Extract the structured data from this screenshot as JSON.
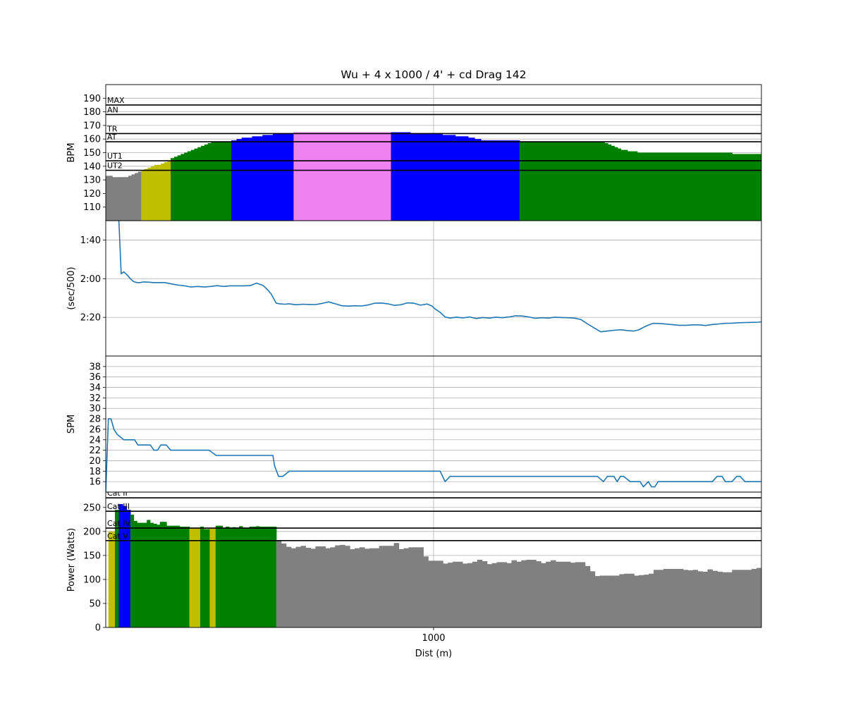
{
  "title": "Wu + 4 x 1000 / 4' + cd Drag 142",
  "xlabel": "Dist (m)",
  "colors": {
    "grey": "#808080",
    "yellow": "#bfbf00",
    "green": "#008000",
    "blue": "#0000ff",
    "violet": "#ee82ee",
    "line": "#1f77b4",
    "axis": "#000000",
    "grid": "#b0b0b0"
  },
  "chart_data": [
    {
      "type": "bar",
      "id": "hr",
      "ylabel": "BPM",
      "ylim": [
        100,
        200
      ],
      "yticks": [
        110,
        120,
        130,
        140,
        150,
        160,
        170,
        180,
        190
      ],
      "grid": true,
      "zone_lines": [
        {
          "label": "MAX",
          "value": 185
        },
        {
          "label": "AN",
          "value": 178
        },
        {
          "label": "TR",
          "value": 164
        },
        {
          "label": "AT",
          "value": 158
        },
        {
          "label": "UT1",
          "value": 144
        },
        {
          "label": "UT2",
          "value": 137
        }
      ],
      "segments": [
        {
          "x0": 0,
          "x1": 108,
          "color": "grey",
          "values": [
            133,
            133,
            132,
            132,
            132,
            132,
            132,
            133,
            134,
            135,
            136
          ]
        },
        {
          "x0": 108,
          "x1": 198,
          "color": "yellow",
          "values": [
            137,
            138,
            139,
            140,
            141,
            141,
            142,
            143,
            144
          ]
        },
        {
          "x0": 198,
          "x1": 383,
          "color": "green",
          "values": [
            146,
            147,
            148,
            149,
            150,
            151,
            152,
            153,
            154,
            155,
            156,
            157,
            158,
            158,
            158,
            158,
            158,
            158
          ]
        },
        {
          "x0": 383,
          "x1": 573,
          "color": "blue",
          "values": [
            159,
            160,
            161,
            161,
            162,
            162,
            163,
            163,
            164,
            164,
            164,
            164
          ]
        },
        {
          "x0": 573,
          "x1": 870,
          "color": "violet",
          "values": [
            165,
            165,
            165,
            165,
            165,
            165,
            165,
            165,
            165,
            165,
            165,
            165,
            165
          ]
        },
        {
          "x0": 870,
          "x1": 1262,
          "color": "blue",
          "values": [
            165,
            165,
            165,
            164,
            164,
            164,
            164,
            164,
            163,
            163,
            162,
            162,
            161,
            160,
            159,
            159,
            159,
            159,
            159,
            159
          ]
        },
        {
          "x0": 1262,
          "x1": 2000,
          "color": "green",
          "values": [
            158,
            158,
            158,
            158,
            158,
            158,
            158,
            158,
            158,
            158,
            158,
            158,
            158,
            158,
            158,
            158,
            158,
            158,
            158,
            158,
            158,
            158,
            158,
            158,
            158,
            158,
            157,
            156,
            155,
            154,
            153,
            152,
            152,
            151,
            151,
            151,
            150,
            150,
            150,
            150,
            150,
            150,
            150,
            150,
            150,
            150,
            150,
            150,
            150,
            150,
            150,
            150,
            150,
            150,
            150,
            150,
            150,
            150,
            150,
            150,
            150,
            150,
            150,
            150,
            150,
            149,
            149,
            149,
            149,
            149,
            149,
            149,
            149,
            149
          ]
        }
      ]
    },
    {
      "type": "line",
      "id": "pace",
      "ylabel": "(sec/500)",
      "ylim": [
        160,
        90
      ],
      "yticks": [
        {
          "value": 100,
          "label": "1:40"
        },
        {
          "value": 120,
          "label": "2:00"
        },
        {
          "value": 140,
          "label": "2:20"
        }
      ],
      "grid": true,
      "x": [
        40,
        47,
        55,
        65,
        75,
        85,
        95,
        105,
        115,
        130,
        145,
        160,
        180,
        200,
        220,
        240,
        260,
        280,
        300,
        320,
        340,
        360,
        380,
        400,
        420,
        440,
        460,
        480,
        495,
        505,
        520,
        530,
        545,
        560,
        580,
        600,
        620,
        640,
        660,
        680,
        700,
        720,
        740,
        760,
        780,
        800,
        820,
        840,
        860,
        880,
        900,
        920,
        940,
        960,
        980,
        995,
        1005,
        1020,
        1035,
        1050,
        1070,
        1090,
        1110,
        1130,
        1150,
        1170,
        1190,
        1210,
        1230,
        1250,
        1270,
        1290,
        1310,
        1330,
        1350,
        1370,
        1390,
        1410,
        1430,
        1450,
        1470,
        1490,
        1510,
        1530,
        1550,
        1570,
        1590,
        1610,
        1625,
        1640,
        1655,
        1670,
        1690,
        1710,
        1730,
        1750,
        1770,
        1790,
        1810,
        1830,
        1850,
        1870,
        1890,
        1910,
        1930,
        1950,
        1970,
        1990,
        2000
      ],
      "y": [
        90,
        117.5,
        116.5,
        118,
        120,
        121.5,
        122,
        122,
        121.7,
        121.8,
        122,
        122,
        122,
        122.7,
        123.3,
        123.7,
        124.3,
        124,
        124.3,
        124,
        123.6,
        124,
        123.7,
        123.7,
        123.7,
        123.6,
        122.3,
        123.5,
        126,
        128,
        132.7,
        133,
        133.2,
        133,
        133.5,
        133.2,
        133.3,
        133.4,
        132.8,
        132,
        133,
        134,
        134.2,
        134,
        134.1,
        133.6,
        132.7,
        132.6,
        133,
        133.8,
        133.5,
        132.5,
        132.7,
        133.7,
        133.1,
        134.1,
        135.7,
        137.4,
        139.8,
        140.4,
        139.9,
        140.3,
        139.8,
        140.6,
        140.1,
        140.4,
        139.9,
        140.2,
        139.8,
        139.2,
        139.3,
        139.8,
        140.5,
        140.2,
        140.4,
        139.9,
        140.1,
        140.2,
        140.4,
        141.2,
        143.4,
        145.5,
        147.5,
        147.1,
        146.7,
        146.4,
        146.8,
        147.1,
        146.5,
        145.2,
        144,
        143.1,
        143.2,
        143.5,
        143.8,
        144.1,
        144.1,
        143.9,
        143.9,
        144.2,
        143.7,
        143.4,
        143.1,
        143,
        142.8,
        142.7,
        142.6,
        142.5,
        142.3
      ]
    },
    {
      "type": "line",
      "id": "spm",
      "ylabel": "SPM",
      "ylim": [
        14,
        40
      ],
      "yticks": [
        16,
        18,
        20,
        22,
        24,
        26,
        28,
        30,
        32,
        34,
        36,
        38
      ],
      "grid": true,
      "x": [
        0,
        8,
        16,
        25,
        35,
        55,
        88,
        98,
        136,
        147,
        158,
        168,
        185,
        198,
        212,
        235,
        260,
        300,
        315,
        337,
        350,
        400,
        450,
        510,
        515,
        527,
        540,
        560,
        600,
        700,
        800,
        900,
        1000,
        1020,
        1035,
        1050,
        1100,
        1200,
        1300,
        1400,
        1450,
        1500,
        1518,
        1530,
        1540,
        1550,
        1560,
        1570,
        1580,
        1600,
        1612,
        1630,
        1640,
        1655,
        1665,
        1675,
        1685,
        1700,
        1740,
        1800,
        1850,
        1865,
        1880,
        1890,
        1910,
        1925,
        1935,
        1950,
        2000
      ],
      "y": [
        14,
        28,
        28,
        26,
        25,
        24,
        24,
        23,
        23,
        22,
        22,
        23,
        23,
        22,
        22,
        22,
        22,
        22,
        22,
        21,
        21,
        21,
        21,
        21,
        19,
        17,
        17,
        18,
        18,
        18,
        18,
        18,
        18,
        18,
        16,
        17,
        17,
        17,
        17,
        17,
        17,
        17,
        16,
        17,
        17,
        17,
        16,
        17,
        17,
        16,
        16,
        16,
        15,
        16,
        15,
        15,
        16,
        16,
        16,
        16,
        16,
        17,
        17,
        16,
        16,
        17,
        17,
        16,
        16
      ]
    },
    {
      "type": "bar",
      "id": "power",
      "ylabel": "Power (Watts)",
      "ylim": [
        0,
        282
      ],
      "yticks": [
        0,
        50,
        100,
        150,
        200,
        250
      ],
      "grid": true,
      "zone_lines": [
        {
          "label": "Cat II",
          "value": 270
        },
        {
          "label": "Cat III",
          "value": 242
        },
        {
          "label": "Cat IV",
          "value": 207
        },
        {
          "label": "Cat V",
          "value": 181
        }
      ],
      "segments": [
        {
          "x0": 8,
          "x1": 28,
          "color": "yellow",
          "values": [
            200,
            200
          ]
        },
        {
          "x0": 28,
          "x1": 40,
          "color": "green",
          "values": [
            245
          ]
        },
        {
          "x0": 40,
          "x1": 75,
          "color": "blue",
          "values": [
            257,
            253,
            245
          ]
        },
        {
          "x0": 75,
          "x1": 255,
          "color": "green",
          "values": [
            235,
            222,
            218,
            218,
            218,
            224,
            218,
            216,
            214,
            220,
            220,
            212,
            212,
            212,
            212,
            210,
            210,
            210
          ]
        },
        {
          "x0": 255,
          "x1": 288,
          "color": "yellow",
          "values": [
            207,
            207,
            207
          ]
        },
        {
          "x0": 288,
          "x1": 317,
          "color": "green",
          "values": [
            210,
            205,
            205
          ]
        },
        {
          "x0": 317,
          "x1": 335,
          "color": "yellow",
          "values": [
            207,
            207
          ]
        },
        {
          "x0": 335,
          "x1": 520,
          "color": "green",
          "values": [
            212,
            212,
            208,
            210,
            207,
            209,
            208,
            211,
            208,
            207,
            210,
            210,
            211,
            210,
            210,
            210,
            210,
            210
          ]
        },
        {
          "x0": 520,
          "x1": 2000,
          "color": "grey",
          "values": [
            181,
            175,
            168,
            165,
            168,
            170,
            166,
            164,
            169,
            169,
            165,
            167,
            171,
            172,
            170,
            163,
            165,
            167,
            164,
            165,
            165,
            170,
            170,
            170,
            176,
            163,
            165,
            167,
            167,
            167,
            148,
            139,
            139,
            139,
            133,
            135,
            137,
            137,
            133,
            134,
            137,
            141,
            138,
            132,
            134,
            136,
            136,
            134,
            140,
            137,
            140,
            141,
            141,
            138,
            134,
            137,
            140,
            137,
            137,
            137,
            135,
            136,
            136,
            128,
            117,
            107,
            108,
            108,
            108,
            108,
            111,
            112,
            112,
            108,
            109,
            110,
            112,
            120,
            120,
            122,
            122,
            122,
            122,
            120,
            119,
            120,
            117,
            116,
            121,
            118,
            116,
            115,
            115,
            120,
            120,
            120,
            120,
            122,
            124
          ]
        }
      ]
    }
  ],
  "xaxis": {
    "range": [
      0,
      2000
    ],
    "ticks": [
      {
        "value": 1000,
        "label": "1000"
      }
    ]
  }
}
